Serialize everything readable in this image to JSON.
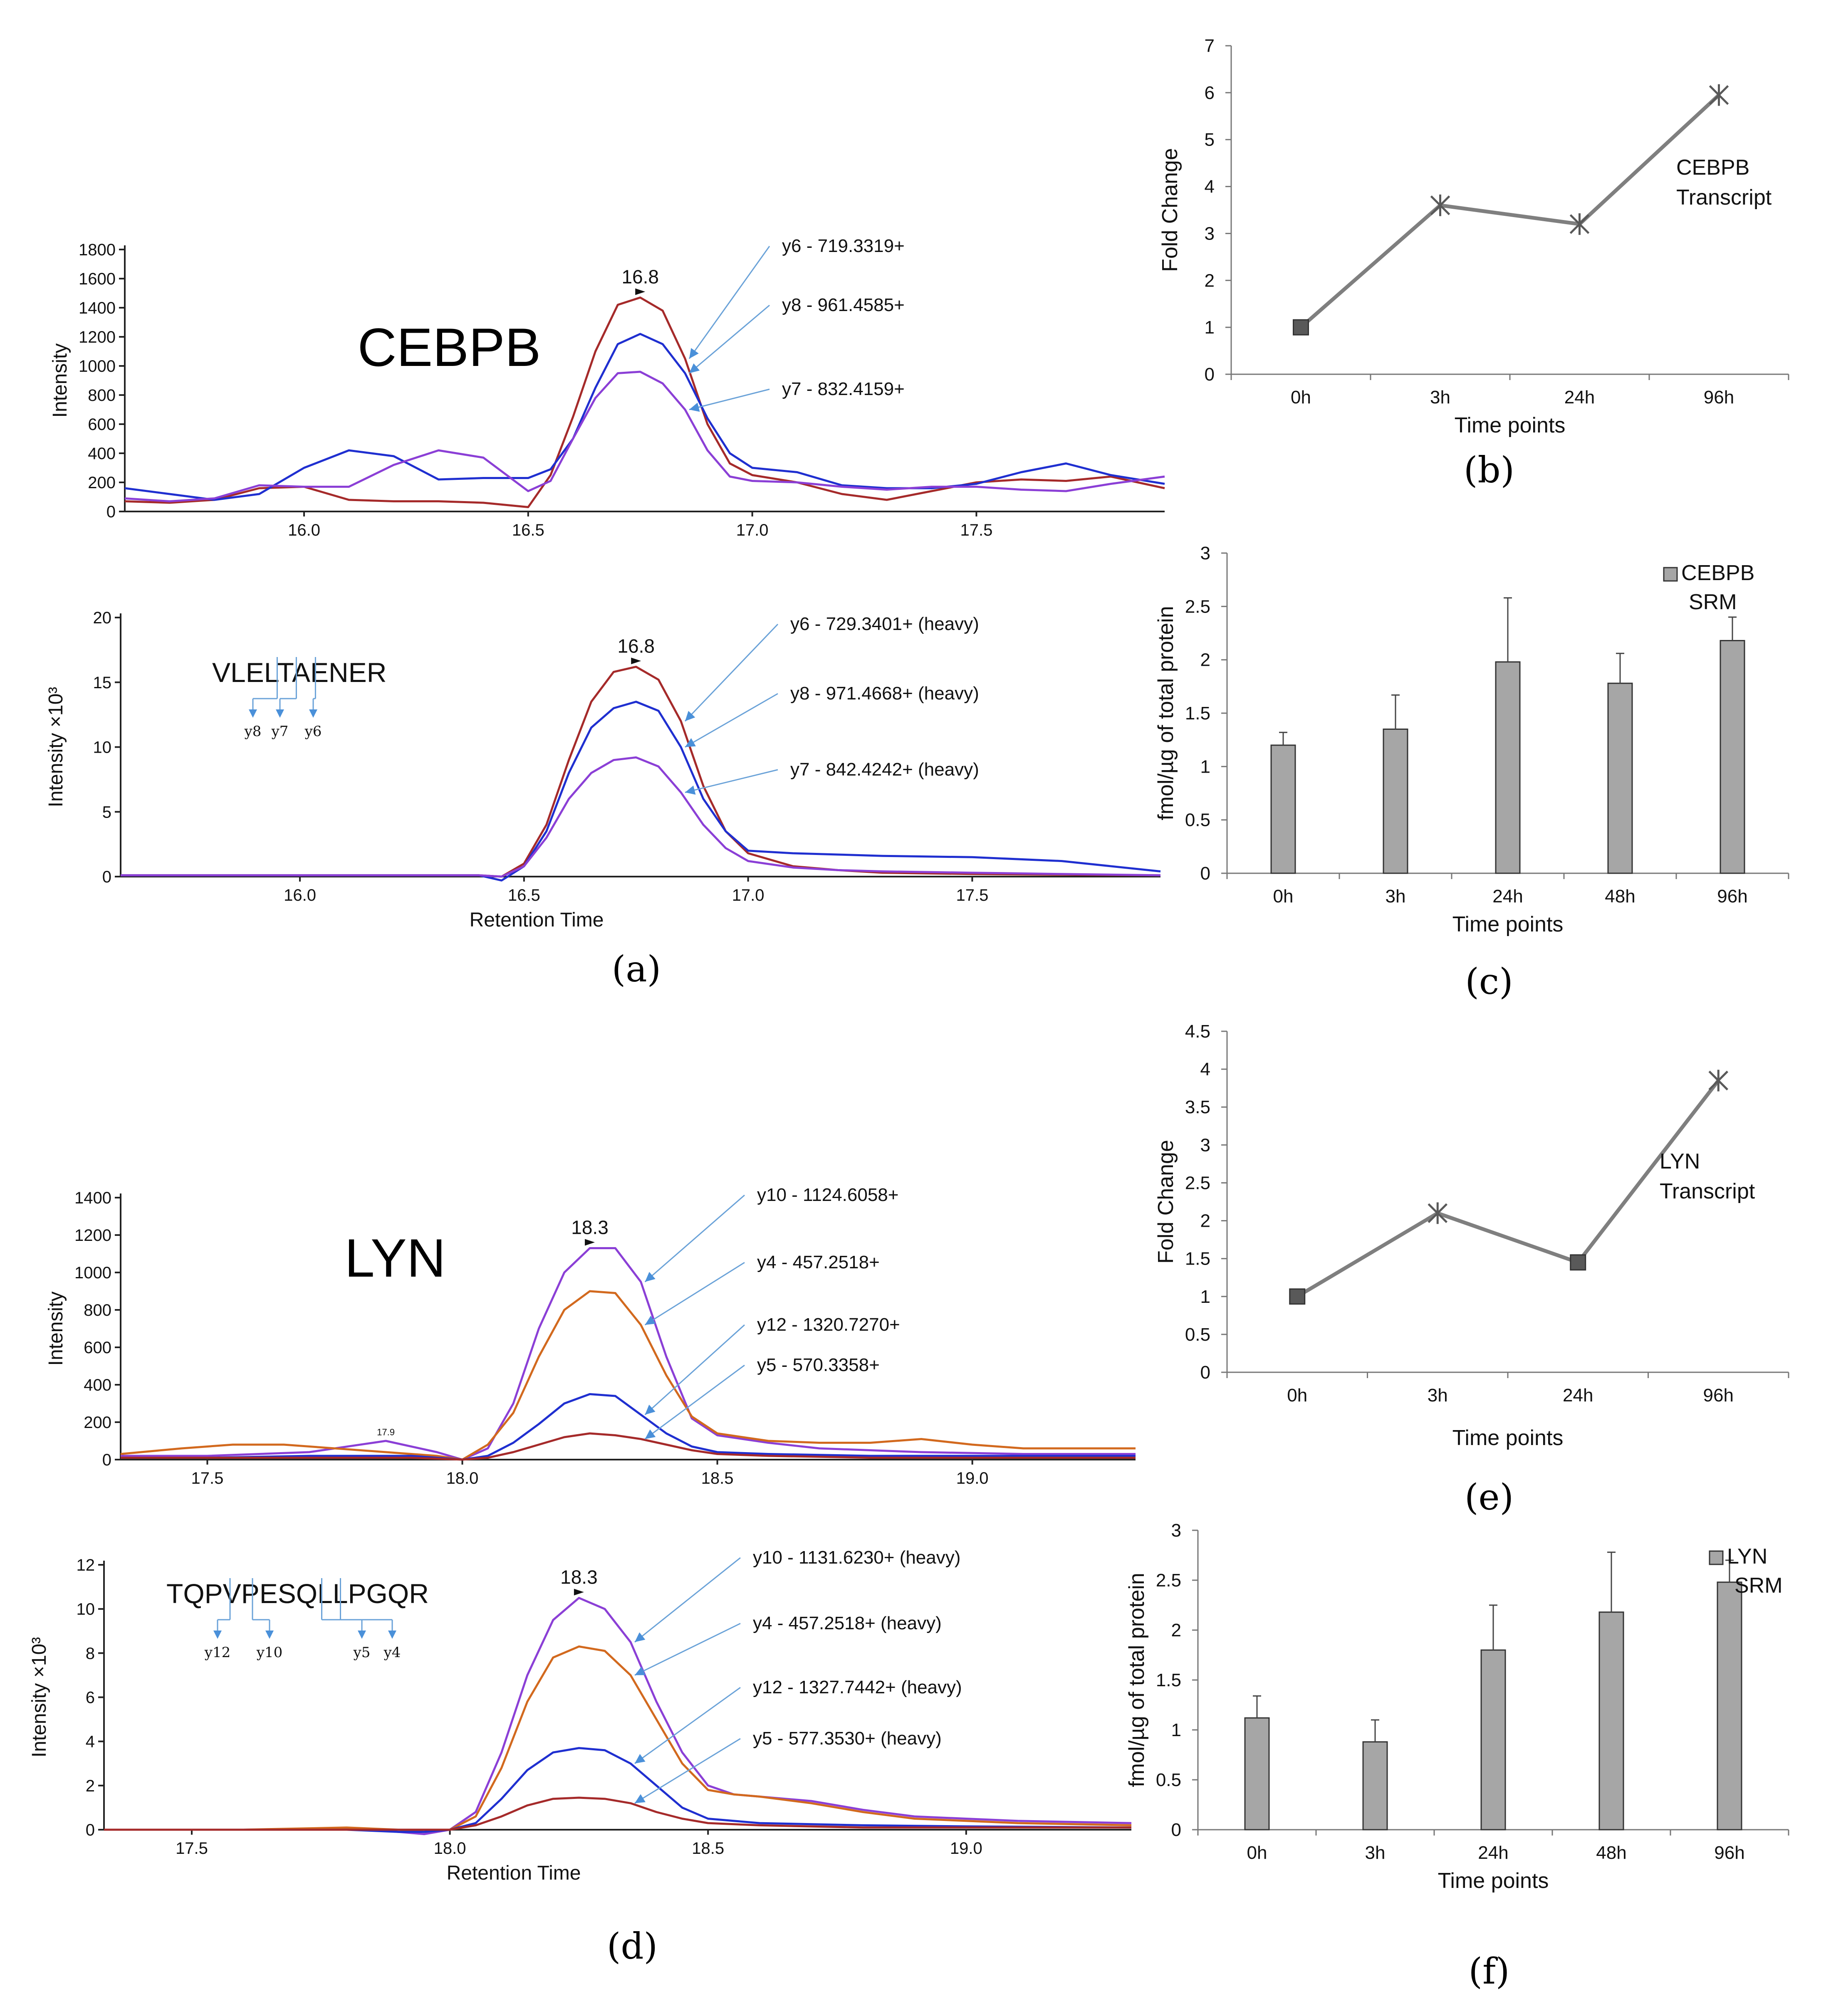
{
  "chart_data": [
    {
      "id": "a-top",
      "type": "line",
      "caption": "",
      "title": "CEBPB",
      "xlabel": "",
      "ylabel": "Intensity",
      "xlim": [
        15.6,
        17.92
      ],
      "ylim": [
        0,
        1800
      ],
      "xticks": [
        "16.0",
        "16.5",
        "17.0",
        "17.5"
      ],
      "yticks": [
        "0",
        "200",
        "400",
        "600",
        "800",
        "1000",
        "1200",
        "1400",
        "1600",
        "1800"
      ],
      "peak_label": "16.8",
      "peak_color": "#b03030",
      "series": [
        {
          "name": "y6 - 719.3319+",
          "color": "#a52a2a",
          "x": [
            15.6,
            15.7,
            15.8,
            15.9,
            16.0,
            16.1,
            16.2,
            16.3,
            16.4,
            16.5,
            16.55,
            16.6,
            16.65,
            16.7,
            16.75,
            16.8,
            16.85,
            16.9,
            16.95,
            17.0,
            17.1,
            17.2,
            17.3,
            17.4,
            17.5,
            17.6,
            17.7,
            17.8,
            17.92
          ],
          "y": [
            70,
            60,
            80,
            160,
            170,
            80,
            70,
            70,
            60,
            30,
            250,
            650,
            1100,
            1420,
            1470,
            1380,
            1050,
            600,
            330,
            250,
            200,
            120,
            80,
            140,
            200,
            220,
            210,
            240,
            160
          ]
        },
        {
          "name": "y8 - 961.4585+",
          "color": "#1f2fd0",
          "x": [
            15.6,
            15.7,
            15.8,
            15.9,
            16.0,
            16.1,
            16.2,
            16.3,
            16.4,
            16.5,
            16.55,
            16.6,
            16.65,
            16.7,
            16.75,
            16.8,
            16.85,
            16.9,
            16.95,
            17.0,
            17.1,
            17.2,
            17.3,
            17.4,
            17.5,
            17.6,
            17.7,
            17.8,
            17.92
          ],
          "y": [
            160,
            120,
            80,
            120,
            300,
            420,
            380,
            220,
            230,
            230,
            290,
            500,
            850,
            1150,
            1220,
            1150,
            950,
            640,
            400,
            300,
            270,
            180,
            160,
            160,
            190,
            270,
            330,
            250,
            190
          ]
        },
        {
          "name": "y7 - 832.4159+",
          "color": "#8b3fd6",
          "x": [
            15.6,
            15.7,
            15.8,
            15.9,
            16.0,
            16.1,
            16.2,
            16.3,
            16.4,
            16.5,
            16.55,
            16.6,
            16.65,
            16.7,
            16.75,
            16.8,
            16.85,
            16.9,
            16.95,
            17.0,
            17.1,
            17.2,
            17.3,
            17.4,
            17.5,
            17.6,
            17.7,
            17.8,
            17.92
          ],
          "y": [
            90,
            70,
            90,
            180,
            170,
            170,
            320,
            420,
            370,
            140,
            210,
            500,
            780,
            950,
            960,
            880,
            700,
            420,
            240,
            210,
            200,
            170,
            150,
            170,
            170,
            150,
            140,
            190,
            240
          ]
        }
      ]
    },
    {
      "id": "a-bottom",
      "type": "line",
      "caption": "(a)",
      "title": "",
      "xlabel": "Retention Time",
      "ylabel": "Intensity ×10³",
      "xlim": [
        15.6,
        17.92
      ],
      "ylim": [
        0,
        20
      ],
      "xticks": [
        "16.0",
        "16.5",
        "17.0",
        "17.5"
      ],
      "yticks": [
        "0",
        "5",
        "10",
        "15",
        "20"
      ],
      "peak_label": "16.8",
      "peak_color": "#b03030",
      "peptide": "VLELTAENER",
      "fragments": [
        "y8",
        "y7",
        "y6"
      ],
      "series": [
        {
          "name": "y6 - 729.3401+ (heavy)",
          "color": "#a52a2a",
          "x": [
            15.6,
            16.0,
            16.4,
            16.45,
            16.5,
            16.55,
            16.6,
            16.65,
            16.7,
            16.75,
            16.8,
            16.85,
            16.9,
            16.95,
            17.0,
            17.1,
            17.2,
            17.3,
            17.5,
            17.7,
            17.92
          ],
          "y": [
            0.1,
            0.1,
            0.1,
            0,
            1,
            4,
            9,
            13.5,
            15.8,
            16.2,
            15.2,
            12,
            7,
            3.5,
            1.8,
            0.8,
            0.5,
            0.3,
            0.2,
            0.15,
            0.1
          ]
        },
        {
          "name": "y8 - 971.4668+ (heavy)",
          "color": "#1f2fd0",
          "x": [
            15.6,
            16.0,
            16.4,
            16.45,
            16.5,
            16.55,
            16.6,
            16.65,
            16.7,
            16.75,
            16.8,
            16.85,
            16.9,
            16.95,
            17.0,
            17.1,
            17.2,
            17.3,
            17.5,
            17.7,
            17.92
          ],
          "y": [
            0.1,
            0.1,
            0.1,
            -0.3,
            0.8,
            3.5,
            8,
            11.5,
            13,
            13.5,
            12.8,
            10,
            6,
            3.5,
            2,
            1.8,
            1.7,
            1.6,
            1.5,
            1.2,
            0.4
          ]
        },
        {
          "name": "y7 - 842.4242+ (heavy)",
          "color": "#8b3fd6",
          "x": [
            15.6,
            16.0,
            16.4,
            16.45,
            16.5,
            16.55,
            16.6,
            16.65,
            16.7,
            16.75,
            16.8,
            16.85,
            16.9,
            16.95,
            17.0,
            17.1,
            17.2,
            17.3,
            17.5,
            17.7,
            17.92
          ],
          "y": [
            0.1,
            0.1,
            0.1,
            0,
            0.8,
            3,
            6,
            8,
            9,
            9.2,
            8.5,
            6.5,
            4,
            2.2,
            1.2,
            0.7,
            0.5,
            0.4,
            0.3,
            0.2,
            0.1
          ]
        }
      ]
    },
    {
      "id": "b",
      "type": "line",
      "caption": "(b)",
      "annotation": [
        "CEBPB",
        "Transcript"
      ],
      "xlabel": "Time points",
      "ylabel": "Fold Change",
      "categories": [
        "0h",
        "3h",
        "24h",
        "96h"
      ],
      "values": [
        1,
        3.6,
        3.2,
        5.95
      ],
      "ylim": [
        0,
        7
      ],
      "yticks": [
        "0",
        "1",
        "2",
        "3",
        "4",
        "5",
        "6",
        "7"
      ]
    },
    {
      "id": "c",
      "type": "bar",
      "caption": "(c)",
      "legend": [
        "CEBPB",
        "SRM"
      ],
      "xlabel": "Time points",
      "ylabel": "fmol/µg of total protein",
      "categories": [
        "0h",
        "3h",
        "24h",
        "48h",
        "96h"
      ],
      "values": [
        1.2,
        1.35,
        1.98,
        1.78,
        2.18
      ],
      "errors": [
        0.12,
        0.32,
        0.6,
        0.28,
        0.22
      ],
      "ylim": [
        0,
        3
      ],
      "yticks": [
        "0",
        "0.5",
        "1",
        "1.5",
        "2",
        "2.5",
        "3"
      ]
    },
    {
      "id": "d-top",
      "type": "line",
      "caption": "",
      "title": "LYN",
      "xlabel": "",
      "ylabel": "Intensity",
      "xlim": [
        17.33,
        19.32
      ],
      "ylim": [
        0,
        1400
      ],
      "xticks": [
        "17.5",
        "18.0",
        "18.5",
        "19.0"
      ],
      "yticks": [
        "0",
        "200",
        "400",
        "600",
        "800",
        "1000",
        "1200",
        "1400"
      ],
      "peak_label": "18.3",
      "minor_label": "17.9",
      "peak_color": "#8b3fd6",
      "series": [
        {
          "name": "y10 - 1124.6058+",
          "color": "#8b3fd6",
          "x": [
            17.33,
            17.5,
            17.7,
            17.85,
            17.95,
            18.0,
            18.05,
            18.1,
            18.15,
            18.2,
            18.25,
            18.3,
            18.35,
            18.4,
            18.45,
            18.5,
            18.6,
            18.7,
            18.9,
            19.1,
            19.32
          ],
          "y": [
            20,
            20,
            40,
            100,
            40,
            0,
            60,
            300,
            700,
            1000,
            1130,
            1130,
            950,
            550,
            220,
            130,
            90,
            60,
            40,
            30,
            30
          ]
        },
        {
          "name": "y4 - 457.2518+",
          "color": "#d2691e",
          "x": [
            17.33,
            17.45,
            17.55,
            17.65,
            17.75,
            17.85,
            17.95,
            18.0,
            18.05,
            18.1,
            18.15,
            18.2,
            18.25,
            18.3,
            18.35,
            18.4,
            18.45,
            18.5,
            18.6,
            18.7,
            18.8,
            18.9,
            19.0,
            19.1,
            19.2,
            19.32
          ],
          "y": [
            30,
            60,
            80,
            80,
            60,
            40,
            20,
            0,
            80,
            250,
            550,
            800,
            900,
            890,
            720,
            450,
            230,
            140,
            100,
            90,
            90,
            110,
            80,
            60,
            60,
            60
          ]
        },
        {
          "name": "y12 - 1320.7270+",
          "color": "#1f2fd0",
          "x": [
            17.33,
            17.5,
            17.7,
            17.9,
            18.0,
            18.05,
            18.1,
            18.15,
            18.2,
            18.25,
            18.3,
            18.35,
            18.4,
            18.45,
            18.5,
            18.6,
            18.8,
            19.0,
            19.32
          ],
          "y": [
            10,
            10,
            20,
            20,
            0,
            20,
            90,
            190,
            300,
            350,
            340,
            240,
            140,
            70,
            40,
            30,
            20,
            20,
            20
          ]
        },
        {
          "name": "y5 - 570.3358+",
          "color": "#a52a2a",
          "x": [
            17.33,
            17.5,
            17.7,
            17.9,
            18.0,
            18.05,
            18.1,
            18.15,
            18.2,
            18.25,
            18.3,
            18.35,
            18.4,
            18.45,
            18.5,
            18.6,
            18.8,
            19.0,
            19.32
          ],
          "y": [
            10,
            10,
            10,
            10,
            0,
            10,
            40,
            80,
            120,
            140,
            130,
            110,
            80,
            50,
            30,
            20,
            10,
            10,
            10
          ]
        }
      ]
    },
    {
      "id": "d-bottom",
      "type": "line",
      "caption": "(d)",
      "title": "",
      "xlabel": "Retention Time",
      "ylabel": "Intensity ×10³",
      "xlim": [
        17.33,
        19.32
      ],
      "ylim": [
        0,
        12
      ],
      "xticks": [
        "17.5",
        "18.0",
        "18.5",
        "19.0"
      ],
      "yticks": [
        "0",
        "2",
        "4",
        "6",
        "8",
        "10",
        "12"
      ],
      "peak_label": "18.3",
      "peak_color": "#8b3fd6",
      "peptide": "TQPVPESQLLPGQR",
      "fragments": [
        "y12",
        "y10",
        "y5",
        "y4"
      ],
      "series": [
        {
          "name": "y10 - 1131.6230+ (heavy)",
          "color": "#8b3fd6",
          "x": [
            17.33,
            17.6,
            17.8,
            17.9,
            17.95,
            18.0,
            18.05,
            18.1,
            18.15,
            18.2,
            18.25,
            18.3,
            18.35,
            18.4,
            18.45,
            18.5,
            18.55,
            18.6,
            18.7,
            18.8,
            18.9,
            19.0,
            19.1,
            19.32
          ],
          "y": [
            0,
            0,
            0.05,
            -0.1,
            -0.2,
            0,
            0.8,
            3.5,
            7,
            9.5,
            10.5,
            10,
            8.5,
            5.8,
            3.5,
            2,
            1.6,
            1.5,
            1.3,
            0.9,
            0.6,
            0.5,
            0.4,
            0.3
          ]
        },
        {
          "name": "y4 - 457.2518+ (heavy)",
          "color": "#d2691e",
          "x": [
            17.33,
            17.6,
            17.8,
            17.9,
            17.95,
            18.0,
            18.05,
            18.1,
            18.15,
            18.2,
            18.25,
            18.3,
            18.35,
            18.4,
            18.45,
            18.5,
            18.55,
            18.6,
            18.7,
            18.8,
            18.9,
            19.0,
            19.1,
            19.32
          ],
          "y": [
            0,
            0,
            0.1,
            0,
            -0.1,
            0,
            0.6,
            2.8,
            5.8,
            7.8,
            8.3,
            8.1,
            7,
            5,
            3,
            1.8,
            1.6,
            1.5,
            1.2,
            0.8,
            0.5,
            0.4,
            0.3,
            0.2
          ]
        },
        {
          "name": "y12 - 1327.7442+ (heavy)",
          "color": "#1f2fd0",
          "x": [
            17.33,
            17.6,
            17.8,
            17.9,
            17.95,
            18.0,
            18.05,
            18.1,
            18.15,
            18.2,
            18.25,
            18.3,
            18.35,
            18.4,
            18.45,
            18.5,
            18.6,
            18.8,
            19.0,
            19.32
          ],
          "y": [
            0,
            0,
            0,
            -0.1,
            -0.1,
            0,
            0.3,
            1.4,
            2.7,
            3.5,
            3.7,
            3.6,
            3,
            2,
            1,
            0.5,
            0.3,
            0.2,
            0.15,
            0.1
          ]
        },
        {
          "name": "y5 - 577.3530+ (heavy)",
          "color": "#a52a2a",
          "x": [
            17.33,
            17.6,
            17.8,
            17.9,
            17.95,
            18.0,
            18.05,
            18.1,
            18.15,
            18.2,
            18.25,
            18.3,
            18.35,
            18.4,
            18.45,
            18.5,
            18.6,
            18.8,
            19.0,
            19.32
          ],
          "y": [
            0,
            0,
            0,
            0,
            0,
            0,
            0.2,
            0.6,
            1.1,
            1.4,
            1.45,
            1.4,
            1.2,
            0.8,
            0.5,
            0.3,
            0.2,
            0.1,
            0.1,
            0.1
          ]
        }
      ]
    },
    {
      "id": "e",
      "type": "line",
      "caption": "(e)",
      "annotation": [
        "LYN",
        "Transcript"
      ],
      "xlabel": "Time points",
      "ylabel": "Fold Change",
      "categories": [
        "0h",
        "3h",
        "24h",
        "96h"
      ],
      "values": [
        1,
        2.1,
        1.45,
        3.85
      ],
      "ylim": [
        0,
        4.5
      ],
      "yticks": [
        "0",
        "0.5",
        "1",
        "1.5",
        "2",
        "2.5",
        "3",
        "3.5",
        "4",
        "4.5"
      ]
    },
    {
      "id": "f",
      "type": "bar",
      "caption": "(f)",
      "legend": [
        "LYN",
        "SRM"
      ],
      "xlabel": "Time points",
      "ylabel": "fmol/µg of total protein",
      "categories": [
        "0h",
        "3h",
        "24h",
        "48h",
        "96h"
      ],
      "values": [
        1.12,
        0.88,
        1.8,
        2.18,
        2.48
      ],
      "errors": [
        0.22,
        0.22,
        0.45,
        0.6,
        0.22
      ],
      "ylim": [
        0,
        3
      ],
      "yticks": [
        "0",
        "0.5",
        "1",
        "1.5",
        "2",
        "2.5",
        "3"
      ]
    }
  ]
}
